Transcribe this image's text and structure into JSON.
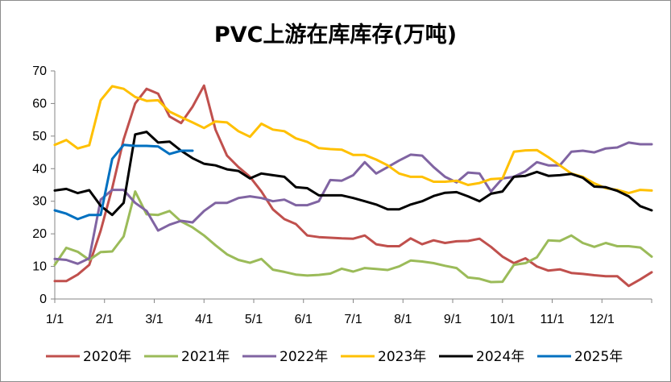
{
  "chart_data": {
    "type": "line",
    "title": "PVC上游在库库存(万吨)",
    "xlabel": "",
    "ylabel": "",
    "ylim": [
      0,
      70
    ],
    "yticks": [
      0,
      10,
      20,
      30,
      40,
      50,
      60,
      70
    ],
    "x_tick_labels": [
      "1/1",
      "2/1",
      "3/1",
      "4/1",
      "5/1",
      "6/1",
      "7/1",
      "8/1",
      "9/1",
      "10/1",
      "11/1",
      "12/1"
    ],
    "x_unit": "week",
    "xlim": [
      0,
      52
    ],
    "legend_position": "bottom",
    "series": [
      {
        "name": "2020年",
        "color": "#c0504d",
        "x": [
          0,
          1,
          2,
          3,
          4,
          5,
          6,
          7,
          8,
          9,
          10,
          11,
          12,
          13,
          14,
          15,
          16,
          17,
          18,
          19,
          20,
          21,
          22,
          23,
          24,
          25,
          26,
          27,
          28,
          29,
          30,
          31,
          32,
          33,
          34,
          35,
          36,
          37,
          38,
          39,
          40,
          41,
          42,
          43,
          44,
          45,
          46,
          47,
          48,
          49,
          50,
          51,
          52
        ],
        "values": [
          5.5,
          5.5,
          7.5,
          10.5,
          21,
          34,
          49,
          60,
          64.5,
          63,
          56,
          54,
          59,
          65.5,
          52,
          44,
          40.5,
          37.5,
          33,
          27.5,
          24.5,
          23,
          19.5,
          19,
          18.8,
          18.6,
          18.5,
          19.5,
          16.8,
          16.2,
          16.2,
          18.6,
          16.8,
          18,
          17.2,
          17.7,
          17.8,
          18.5,
          16,
          13,
          11,
          12.5,
          10,
          8.7,
          9.1,
          8,
          7.7,
          7.3,
          7,
          7,
          4,
          6,
          8.2
        ]
      },
      {
        "name": "2021年",
        "color": "#9bbb59",
        "x": [
          0,
          1,
          2,
          3,
          4,
          5,
          6,
          7,
          8,
          9,
          10,
          11,
          12,
          13,
          14,
          15,
          16,
          17,
          18,
          19,
          20,
          21,
          22,
          23,
          24,
          25,
          26,
          27,
          28,
          29,
          30,
          31,
          32,
          33,
          34,
          35,
          36,
          37,
          38,
          39,
          40,
          41,
          42,
          43,
          44,
          45,
          46,
          47,
          48,
          49,
          50,
          51,
          52
        ],
        "values": [
          10.5,
          15.7,
          14.5,
          12,
          14.4,
          14.6,
          19.2,
          33,
          26,
          25.8,
          27,
          23.8,
          22,
          19.5,
          16.5,
          13.7,
          12,
          11.1,
          12.3,
          9,
          8.3,
          7.5,
          7.2,
          7.4,
          7.8,
          9.3,
          8.4,
          9.5,
          9.2,
          8.9,
          10,
          11.8,
          11.5,
          11,
          10.2,
          9.5,
          6.6,
          6.2,
          5.2,
          5.3,
          10.5,
          11,
          12.8,
          18,
          17.8,
          19.5,
          17.2,
          16,
          17.2,
          16.2,
          16.2,
          15.8,
          13
        ]
      },
      {
        "name": "2022年",
        "color": "#8064a2",
        "x": [
          0,
          1,
          2,
          3,
          4,
          5,
          6,
          7,
          8,
          9,
          10,
          11,
          12,
          13,
          14,
          15,
          16,
          17,
          18,
          19,
          20,
          21,
          22,
          23,
          24,
          25,
          26,
          27,
          28,
          29,
          30,
          31,
          32,
          33,
          34,
          35,
          36,
          37,
          38,
          39,
          40,
          41,
          42,
          43,
          44,
          45,
          46,
          47,
          48,
          49,
          50,
          51,
          52
        ],
        "values": [
          12.3,
          12,
          10.8,
          12.5,
          30.5,
          33.5,
          33.5,
          29.5,
          27,
          21,
          22.8,
          24,
          23.5,
          27,
          29.5,
          29.5,
          31,
          31.5,
          31,
          30,
          30.5,
          28.8,
          28.8,
          30,
          36.5,
          36.3,
          38,
          42,
          38.5,
          40.5,
          42.5,
          44.3,
          44,
          40.5,
          37.5,
          35.8,
          38.8,
          38.5,
          33,
          37,
          37.5,
          39.2,
          42,
          41,
          41,
          45.2,
          45.5,
          45,
          46.2,
          46.5,
          48,
          47.5,
          47.5
        ]
      },
      {
        "name": "2023年",
        "color": "#ffc000",
        "x": [
          0,
          1,
          2,
          3,
          4,
          5,
          6,
          7,
          8,
          9,
          10,
          11,
          12,
          13,
          14,
          15,
          16,
          17,
          18,
          19,
          20,
          21,
          22,
          23,
          24,
          25,
          26,
          27,
          28,
          29,
          30,
          31,
          32,
          33,
          34,
          35,
          36,
          37,
          38,
          39,
          40,
          41,
          42,
          43,
          44,
          45,
          46,
          47,
          48,
          49,
          50,
          51,
          52
        ],
        "values": [
          47.3,
          48.8,
          46.2,
          47.2,
          61,
          65.3,
          64.5,
          62,
          60.8,
          61,
          57.5,
          55.8,
          54.2,
          52.5,
          54.5,
          54.2,
          51.5,
          49.8,
          53.8,
          52,
          51.5,
          49.3,
          48.2,
          46.3,
          46,
          45.8,
          44.2,
          44.2,
          42.8,
          41,
          38.5,
          37.5,
          37.5,
          36,
          36,
          36.3,
          35,
          35.6,
          36.8,
          37,
          45.2,
          45.6,
          45.7,
          43.5,
          41,
          38.5,
          37.5,
          35.5,
          34,
          33.5,
          32.5,
          33.5,
          33.3
        ]
      },
      {
        "name": "2024年",
        "color": "#000000",
        "x": [
          0,
          1,
          2,
          3,
          4,
          5,
          6,
          7,
          8,
          9,
          10,
          11,
          12,
          13,
          14,
          15,
          16,
          17,
          18,
          19,
          20,
          21,
          22,
          23,
          24,
          25,
          26,
          27,
          28,
          29,
          30,
          31,
          32,
          33,
          34,
          35,
          36,
          37,
          38,
          39,
          40,
          41,
          42,
          43,
          44,
          45,
          46,
          47,
          48,
          49,
          50,
          51,
          52
        ],
        "values": [
          33.3,
          33.8,
          32.5,
          33.4,
          28.6,
          25.8,
          29.5,
          50.5,
          51.3,
          48,
          48.3,
          45.5,
          43.2,
          41.5,
          41,
          39.8,
          39.3,
          37,
          38.5,
          38,
          37.5,
          34.3,
          34,
          31.8,
          31.8,
          31.8,
          31,
          30,
          29,
          27.5,
          27.5,
          29,
          30,
          31.6,
          32.6,
          32.8,
          31.5,
          30,
          32.3,
          33,
          37.5,
          37.8,
          39,
          37.8,
          38,
          38.4,
          37.2,
          34.5,
          34.3,
          33.2,
          31.5,
          28.5,
          27.2
        ]
      },
      {
        "name": "2025年",
        "color": "#0070c0",
        "x": [
          0,
          1,
          2,
          3,
          4,
          5,
          6,
          7,
          8,
          9,
          10,
          11,
          12
        ],
        "values": [
          27.2,
          26.2,
          24.5,
          25.8,
          25.8,
          43,
          47.3,
          47,
          47,
          46.8,
          44.5,
          45.5,
          45.5
        ]
      }
    ]
  }
}
